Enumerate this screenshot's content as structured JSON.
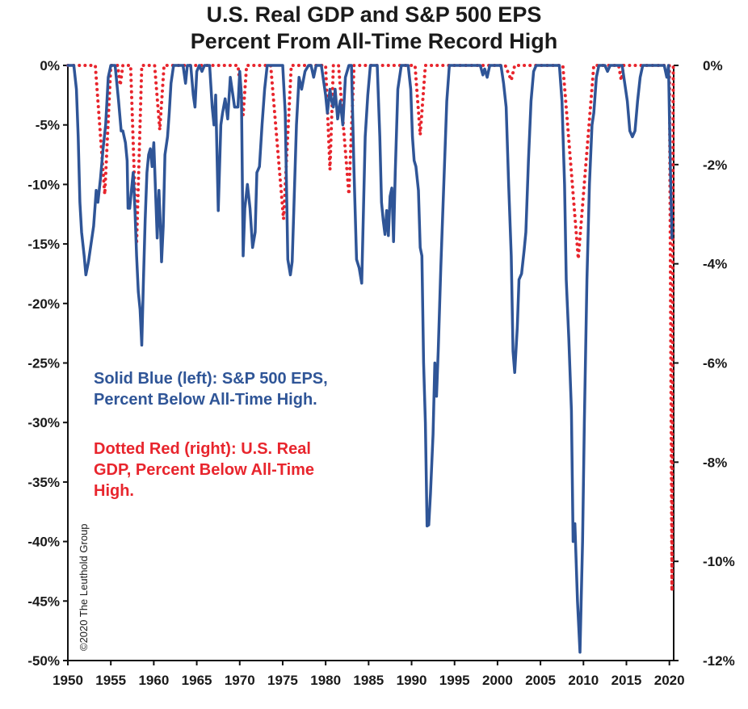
{
  "chart_data": {
    "type": "line",
    "title": "U.S. Real GDP and S&P 500 EPS\nPercent From All-Time Record High",
    "title_lines": [
      "U.S. Real GDP and S&P 500 EPS",
      "Percent From All-Time Record High"
    ],
    "xlim": [
      1950,
      2020.5
    ],
    "x_ticks": [
      "1950",
      "1955",
      "1960",
      "1965",
      "1970",
      "1975",
      "1980",
      "1985",
      "1990",
      "1995",
      "2000",
      "2005",
      "2010",
      "2015",
      "2020"
    ],
    "left_axis": {
      "ylim": [
        -50,
        0
      ],
      "ticks": [
        "0%",
        "-5%",
        "-10%",
        "-15%",
        "-20%",
        "-25%",
        "-30%",
        "-35%",
        "-40%",
        "-45%",
        "-50%"
      ]
    },
    "right_axis": {
      "ylim": [
        -12,
        0
      ],
      "ticks": [
        "0%",
        "-2%",
        "-4%",
        "-6%",
        "-8%",
        "-10%",
        "-12%"
      ]
    },
    "grid": false,
    "annotations": [
      [
        "Solid Blue (left): S&P 500 EPS,",
        "Percent Below All-Time High."
      ],
      [
        "Dotted Red (right): U.S. Real",
        "GDP, Percent Below All-Time",
        "High."
      ]
    ],
    "copyright": "©2020 The Leuthold Group",
    "colors": {
      "eps": "#2f5597",
      "gdp": "#e8252d"
    },
    "series": [
      {
        "axis": "left",
        "style": "solid",
        "color": "#2f5597",
        "points": [
          [
            1950.0,
            0
          ],
          [
            1950.7,
            0
          ],
          [
            1951.0,
            -2
          ],
          [
            1951.2,
            -6
          ],
          [
            1951.4,
            -11.5
          ],
          [
            1951.6,
            -14
          ],
          [
            1951.9,
            -16
          ],
          [
            1952.1,
            -17.6
          ],
          [
            1952.4,
            -16.5
          ],
          [
            1952.7,
            -15
          ],
          [
            1953.0,
            -13.5
          ],
          [
            1953.3,
            -10.5
          ],
          [
            1953.5,
            -11.5
          ],
          [
            1953.8,
            -9.5
          ],
          [
            1954.1,
            -7
          ],
          [
            1954.4,
            -5
          ],
          [
            1954.7,
            -1
          ],
          [
            1955.0,
            0
          ],
          [
            1955.5,
            0
          ],
          [
            1955.9,
            -3
          ],
          [
            1956.2,
            -5.5
          ],
          [
            1956.4,
            -5.5
          ],
          [
            1956.7,
            -6.5
          ],
          [
            1956.9,
            -8
          ],
          [
            1957.0,
            -12
          ],
          [
            1957.2,
            -12
          ],
          [
            1957.4,
            -10.5
          ],
          [
            1957.6,
            -9
          ],
          [
            1957.8,
            -12
          ],
          [
            1958.0,
            -16
          ],
          [
            1958.2,
            -19
          ],
          [
            1958.4,
            -20.5
          ],
          [
            1958.6,
            -23.5
          ],
          [
            1958.8,
            -18
          ],
          [
            1959.0,
            -13
          ],
          [
            1959.2,
            -9
          ],
          [
            1959.4,
            -7.5
          ],
          [
            1959.6,
            -7
          ],
          [
            1959.8,
            -8.5
          ],
          [
            1960.0,
            -6.5
          ],
          [
            1960.2,
            -10.5
          ],
          [
            1960.4,
            -14.5
          ],
          [
            1960.6,
            -10.5
          ],
          [
            1960.8,
            -14
          ],
          [
            1960.9,
            -16.5
          ],
          [
            1961.1,
            -13.5
          ],
          [
            1961.3,
            -7.5
          ],
          [
            1961.6,
            -6
          ],
          [
            1961.8,
            -4
          ],
          [
            1962.0,
            -1.5
          ],
          [
            1962.3,
            0
          ],
          [
            1963.4,
            0
          ],
          [
            1963.7,
            -1.5
          ],
          [
            1963.9,
            0
          ],
          [
            1964.3,
            0
          ],
          [
            1964.6,
            -2.5
          ],
          [
            1964.8,
            -3.5
          ],
          [
            1965.0,
            -0.5
          ],
          [
            1965.3,
            0
          ],
          [
            1965.6,
            -0.5
          ],
          [
            1965.9,
            0
          ],
          [
            1966.5,
            0
          ],
          [
            1966.8,
            -3.5
          ],
          [
            1967.0,
            -5
          ],
          [
            1967.2,
            -2.5
          ],
          [
            1967.5,
            -12.2
          ],
          [
            1967.8,
            -5
          ],
          [
            1968.0,
            -4
          ],
          [
            1968.3,
            -2.8
          ],
          [
            1968.6,
            -4.5
          ],
          [
            1968.9,
            -1
          ],
          [
            1969.2,
            -2.5
          ],
          [
            1969.4,
            -3.5
          ],
          [
            1969.6,
            -3.5
          ],
          [
            1969.8,
            -3.5
          ],
          [
            1970.0,
            -0.5
          ],
          [
            1970.2,
            -2.5
          ],
          [
            1970.4,
            -16
          ],
          [
            1970.6,
            -12
          ],
          [
            1970.9,
            -10
          ],
          [
            1971.2,
            -12
          ],
          [
            1971.5,
            -15.3
          ],
          [
            1971.8,
            -14
          ],
          [
            1972.0,
            -9
          ],
          [
            1972.3,
            -8.5
          ],
          [
            1972.6,
            -5
          ],
          [
            1972.9,
            -2
          ],
          [
            1973.2,
            0
          ],
          [
            1975.0,
            0
          ],
          [
            1975.3,
            -4
          ],
          [
            1975.6,
            -16.3
          ],
          [
            1975.9,
            -17.6
          ],
          [
            1976.1,
            -16.5
          ],
          [
            1976.3,
            -12
          ],
          [
            1976.6,
            -5
          ],
          [
            1976.9,
            -1
          ],
          [
            1977.2,
            -2
          ],
          [
            1977.6,
            -0.5
          ],
          [
            1978.0,
            0
          ],
          [
            1978.3,
            0
          ],
          [
            1978.6,
            -1
          ],
          [
            1978.9,
            0
          ],
          [
            1979.5,
            0
          ],
          [
            1979.8,
            -1.5
          ],
          [
            1980.0,
            -2.5
          ],
          [
            1980.2,
            -4
          ],
          [
            1980.5,
            -2
          ],
          [
            1980.7,
            -3
          ],
          [
            1980.9,
            -3.5
          ],
          [
            1981.1,
            -2
          ],
          [
            1981.4,
            -4.5
          ],
          [
            1981.7,
            -3
          ],
          [
            1982.0,
            -5
          ],
          [
            1982.3,
            -1
          ],
          [
            1982.7,
            0
          ],
          [
            1983.0,
            0
          ],
          [
            1983.3,
            -9
          ],
          [
            1983.6,
            -16.3
          ],
          [
            1983.9,
            -17
          ],
          [
            1984.2,
            -18.3
          ],
          [
            1984.4,
            -12
          ],
          [
            1984.6,
            -6
          ],
          [
            1984.9,
            -2.5
          ],
          [
            1985.2,
            0
          ],
          [
            1986.0,
            0
          ],
          [
            1986.3,
            -6
          ],
          [
            1986.5,
            -11.5
          ],
          [
            1986.7,
            -13
          ],
          [
            1986.9,
            -14.2
          ],
          [
            1987.1,
            -12.2
          ],
          [
            1987.3,
            -14.3
          ],
          [
            1987.5,
            -11
          ],
          [
            1987.7,
            -10.3
          ],
          [
            1987.9,
            -14.8
          ],
          [
            1988.1,
            -9
          ],
          [
            1988.4,
            -2
          ],
          [
            1988.8,
            0
          ],
          [
            1989.6,
            0
          ],
          [
            1989.9,
            -2
          ],
          [
            1990.1,
            -6
          ],
          [
            1990.3,
            -8
          ],
          [
            1990.5,
            -8.5
          ],
          [
            1990.8,
            -10.5
          ],
          [
            1991.0,
            -15.3
          ],
          [
            1991.2,
            -16
          ],
          [
            1991.4,
            -25
          ],
          [
            1991.6,
            -30
          ],
          [
            1991.8,
            -38.7
          ],
          [
            1992.0,
            -38.6
          ],
          [
            1992.2,
            -36
          ],
          [
            1992.5,
            -31
          ],
          [
            1992.7,
            -25
          ],
          [
            1992.9,
            -27.8
          ],
          [
            1993.1,
            -24
          ],
          [
            1993.4,
            -17
          ],
          [
            1993.6,
            -13
          ],
          [
            1993.9,
            -7
          ],
          [
            1994.1,
            -3
          ],
          [
            1994.4,
            0
          ],
          [
            1998.0,
            0
          ],
          [
            1998.3,
            -0.8
          ],
          [
            1998.5,
            -0.3
          ],
          [
            1998.8,
            -1
          ],
          [
            1999.1,
            0
          ],
          [
            2000.4,
            0
          ],
          [
            2000.7,
            -1.5
          ],
          [
            2001.0,
            -3.5
          ],
          [
            2001.3,
            -10
          ],
          [
            2001.6,
            -16
          ],
          [
            2001.8,
            -24
          ],
          [
            2002.0,
            -25.8
          ],
          [
            2002.3,
            -22
          ],
          [
            2002.5,
            -18
          ],
          [
            2002.8,
            -17.5
          ],
          [
            2003.1,
            -15.5
          ],
          [
            2003.3,
            -14
          ],
          [
            2003.6,
            -8
          ],
          [
            2003.9,
            -3
          ],
          [
            2004.2,
            -0.5
          ],
          [
            2004.5,
            0
          ],
          [
            2007.2,
            0
          ],
          [
            2007.5,
            -3
          ],
          [
            2007.8,
            -10
          ],
          [
            2008.0,
            -18
          ],
          [
            2008.3,
            -23
          ],
          [
            2008.6,
            -29
          ],
          [
            2008.8,
            -40
          ],
          [
            2009.0,
            -38.5
          ],
          [
            2009.3,
            -45
          ],
          [
            2009.6,
            -49.3
          ],
          [
            2009.9,
            -40
          ],
          [
            2010.1,
            -30
          ],
          [
            2010.4,
            -18
          ],
          [
            2010.7,
            -10
          ],
          [
            2011.0,
            -5
          ],
          [
            2011.2,
            -4
          ],
          [
            2011.5,
            -1
          ],
          [
            2011.8,
            0
          ],
          [
            2012.5,
            0
          ],
          [
            2012.8,
            -0.5
          ],
          [
            2013.1,
            0
          ],
          [
            2014.5,
            0
          ],
          [
            2014.8,
            -1.5
          ],
          [
            2015.1,
            -3
          ],
          [
            2015.4,
            -5.5
          ],
          [
            2015.7,
            -6
          ],
          [
            2016.0,
            -5.5
          ],
          [
            2016.3,
            -3
          ],
          [
            2016.6,
            -1
          ],
          [
            2016.9,
            0
          ],
          [
            2019.0,
            0
          ],
          [
            2019.4,
            0
          ],
          [
            2019.7,
            -1
          ],
          [
            2019.9,
            0
          ],
          [
            2020.1,
            -8
          ],
          [
            2020.3,
            -14.5
          ]
        ]
      },
      {
        "axis": "right",
        "style": "dotted",
        "color": "#e8252d",
        "dips": [
          [
            1953.2,
            1954.3,
            1955.0,
            -2.6
          ],
          [
            1955.8,
            1956.1,
            1956.4,
            -0.4
          ],
          [
            1957.3,
            1958.0,
            1958.6,
            -3.6
          ],
          [
            1960.1,
            1960.7,
            1961.2,
            -1.3
          ],
          [
            1969.8,
            1970.4,
            1970.8,
            -1.0
          ],
          [
            1973.6,
            1975.1,
            1976.0,
            -3.1
          ],
          [
            1980.0,
            1980.5,
            1980.9,
            -2.1
          ],
          [
            1981.5,
            1982.7,
            1983.3,
            -2.6
          ],
          [
            1990.4,
            1991.0,
            1991.6,
            -1.4
          ],
          [
            2000.9,
            2001.6,
            2002.0,
            -0.3
          ],
          [
            2007.6,
            2009.4,
            2011.2,
            -3.9
          ],
          [
            2014.1,
            2014.4,
            2014.7,
            -0.3
          ],
          [
            2020.0,
            2020.3,
            2020.45,
            -10.6
          ]
        ]
      }
    ]
  }
}
